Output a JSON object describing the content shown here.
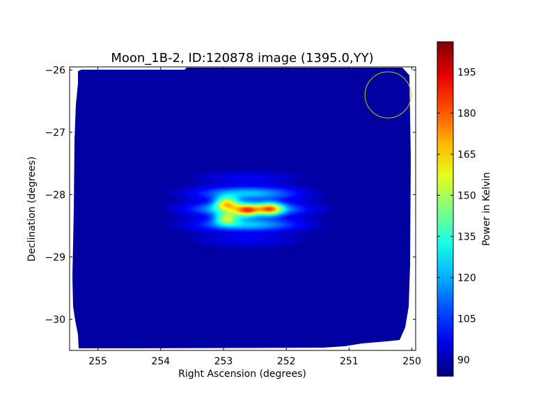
{
  "chart_data": {
    "type": "heatmap",
    "title": "Moon_1B-2, ID:120878 image (1395.0,YY)",
    "xlabel": "Right Ascension (degrees)",
    "ylabel": "Declination (degrees)",
    "colorbar_label": "Power in Kelvin",
    "colormap": "jet",
    "xlim": [
      255.45,
      249.94
    ],
    "ylim": [
      -30.5,
      -25.95
    ],
    "x_ticks": [
      255,
      254,
      253,
      252,
      251,
      250
    ],
    "y_ticks": [
      -26,
      -27,
      -28,
      -29,
      -30
    ],
    "colorbar_range": [
      84,
      206
    ],
    "colorbar_ticks": [
      90,
      105,
      120,
      135,
      150,
      165,
      180,
      195
    ],
    "background_level": 88,
    "beam_circle": {
      "ra": 250.38,
      "dec": -26.4,
      "radius_deg": 0.37,
      "color": "#c8c800"
    },
    "sources": [
      {
        "ra": 252.95,
        "dec": -28.13,
        "peak": 200
      },
      {
        "ra": 252.25,
        "dec": -28.23,
        "peak": 195
      },
      {
        "ra": 252.95,
        "dec": -28.38,
        "peak": 192
      },
      {
        "ra": 252.62,
        "dec": -28.26,
        "peak": 188
      }
    ]
  }
}
